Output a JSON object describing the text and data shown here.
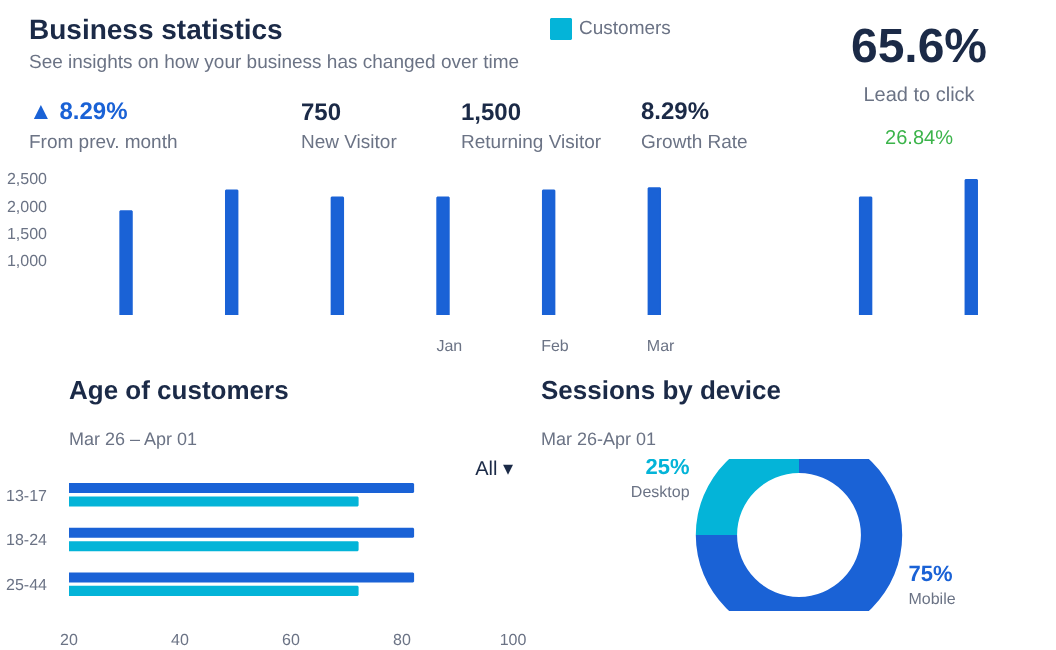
{
  "chart_data": [
    {
      "type": "bar",
      "title": "Business statistics",
      "subtitle": "See insights on how your business has changed over time",
      "annotations": [
        "▲ 8.29%",
        "From prev. month",
        "750",
        "New Visitor",
        "1,500",
        "Returning Visitor",
        "8.29%",
        "Growth Rate"
      ],
      "categories": [
        null,
        null,
        null,
        "Jan",
        "Feb",
        "Mar",
        null,
        null,
        null
      ],
      "series": [
        {
          "color": "#1a62d6",
          "values": [
            1900,
            2280,
            2150,
            2150,
            2280,
            2320,
            null,
            2150,
            2470
          ]
        },
        {
          "name": "Customers",
          "color": "#04b4d8",
          "values": [
            null,
            null,
            null,
            null,
            null,
            null,
            null,
            null,
            null
          ]
        }
      ],
      "ylim": [
        0,
        2600
      ],
      "yticks": [
        {
          "value": 1000,
          "label": "1,000"
        },
        {
          "value": 1500,
          "label": "1,500"
        },
        {
          "value": 2000,
          "label": "2,000"
        },
        {
          "value": 2500,
          "label": "2,500"
        }
      ],
      "legend": "top right"
    },
    {
      "type": "other",
      "annotations": [
        "65.6%",
        "Lead to click",
        "26.84%"
      ]
    },
    {
      "type": "bar",
      "orientation": "horizontal",
      "title": "Age of customers",
      "subtitle": "Mar 26 – Apr 01",
      "annotations": [
        "All ▾"
      ],
      "categories": [
        "13-17",
        "18-24",
        "25-44"
      ],
      "series": [
        {
          "color": "#1a62d6",
          "values": [
            82,
            82,
            82
          ]
        },
        {
          "color": "#04b4d8",
          "values": [
            72,
            72,
            72
          ]
        }
      ],
      "xlim": [
        20,
        100
      ],
      "xticks": [
        20,
        40,
        60,
        80,
        100
      ]
    },
    {
      "type": "donut",
      "title": "Sessions by device",
      "subtitle": "Mar 26-Apr 01",
      "categories": [
        "Mobile",
        "Desktop"
      ],
      "values": [
        75,
        25
      ],
      "colors": [
        "#1a62d6",
        "#04b4d8"
      ],
      "value_labels": [
        "75%",
        "25%"
      ]
    }
  ]
}
